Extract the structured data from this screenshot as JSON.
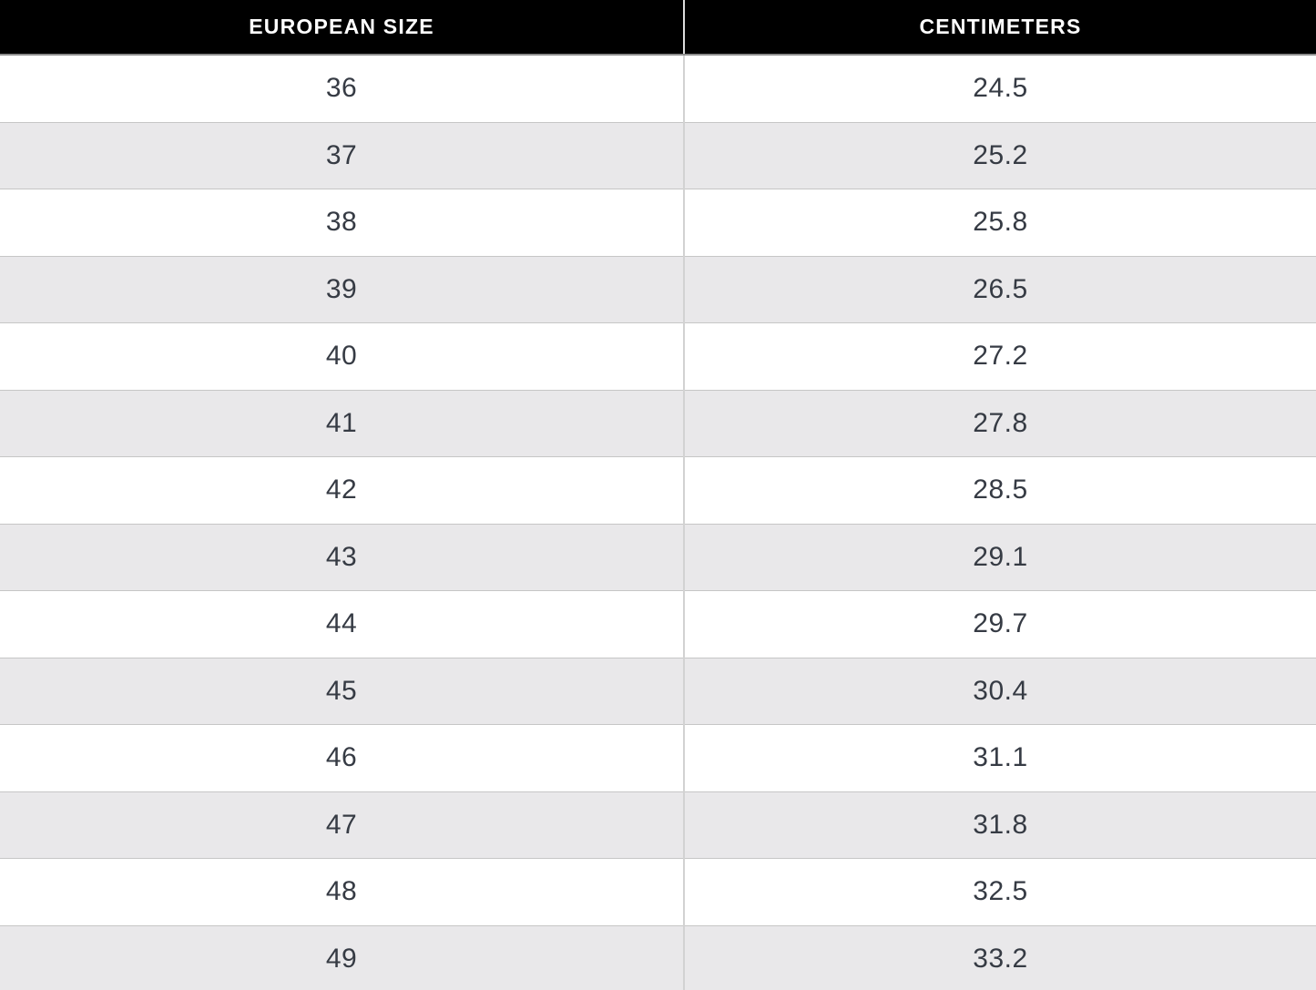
{
  "table": {
    "columns": [
      {
        "label": "EUROPEAN SIZE"
      },
      {
        "label": "CENTIMETERS"
      }
    ],
    "rows": [
      {
        "size": "36",
        "cm": "24.5"
      },
      {
        "size": "37",
        "cm": "25.2"
      },
      {
        "size": "38",
        "cm": "25.8"
      },
      {
        "size": "39",
        "cm": "26.5"
      },
      {
        "size": "40",
        "cm": "27.2"
      },
      {
        "size": "41",
        "cm": "27.8"
      },
      {
        "size": "42",
        "cm": "28.5"
      },
      {
        "size": "43",
        "cm": "29.1"
      },
      {
        "size": "44",
        "cm": "29.7"
      },
      {
        "size": "45",
        "cm": "30.4"
      },
      {
        "size": "46",
        "cm": "31.1"
      },
      {
        "size": "47",
        "cm": "31.8"
      },
      {
        "size": "48",
        "cm": "32.5"
      },
      {
        "size": "49",
        "cm": "33.2"
      }
    ]
  },
  "colors": {
    "header_bg": "#000000",
    "header_text": "#ffffff",
    "row_alt_bg": "#e9e8ea",
    "row_text": "#363b44",
    "row_border": "#c6c6c6",
    "column_divider": "#d2d2d2"
  }
}
